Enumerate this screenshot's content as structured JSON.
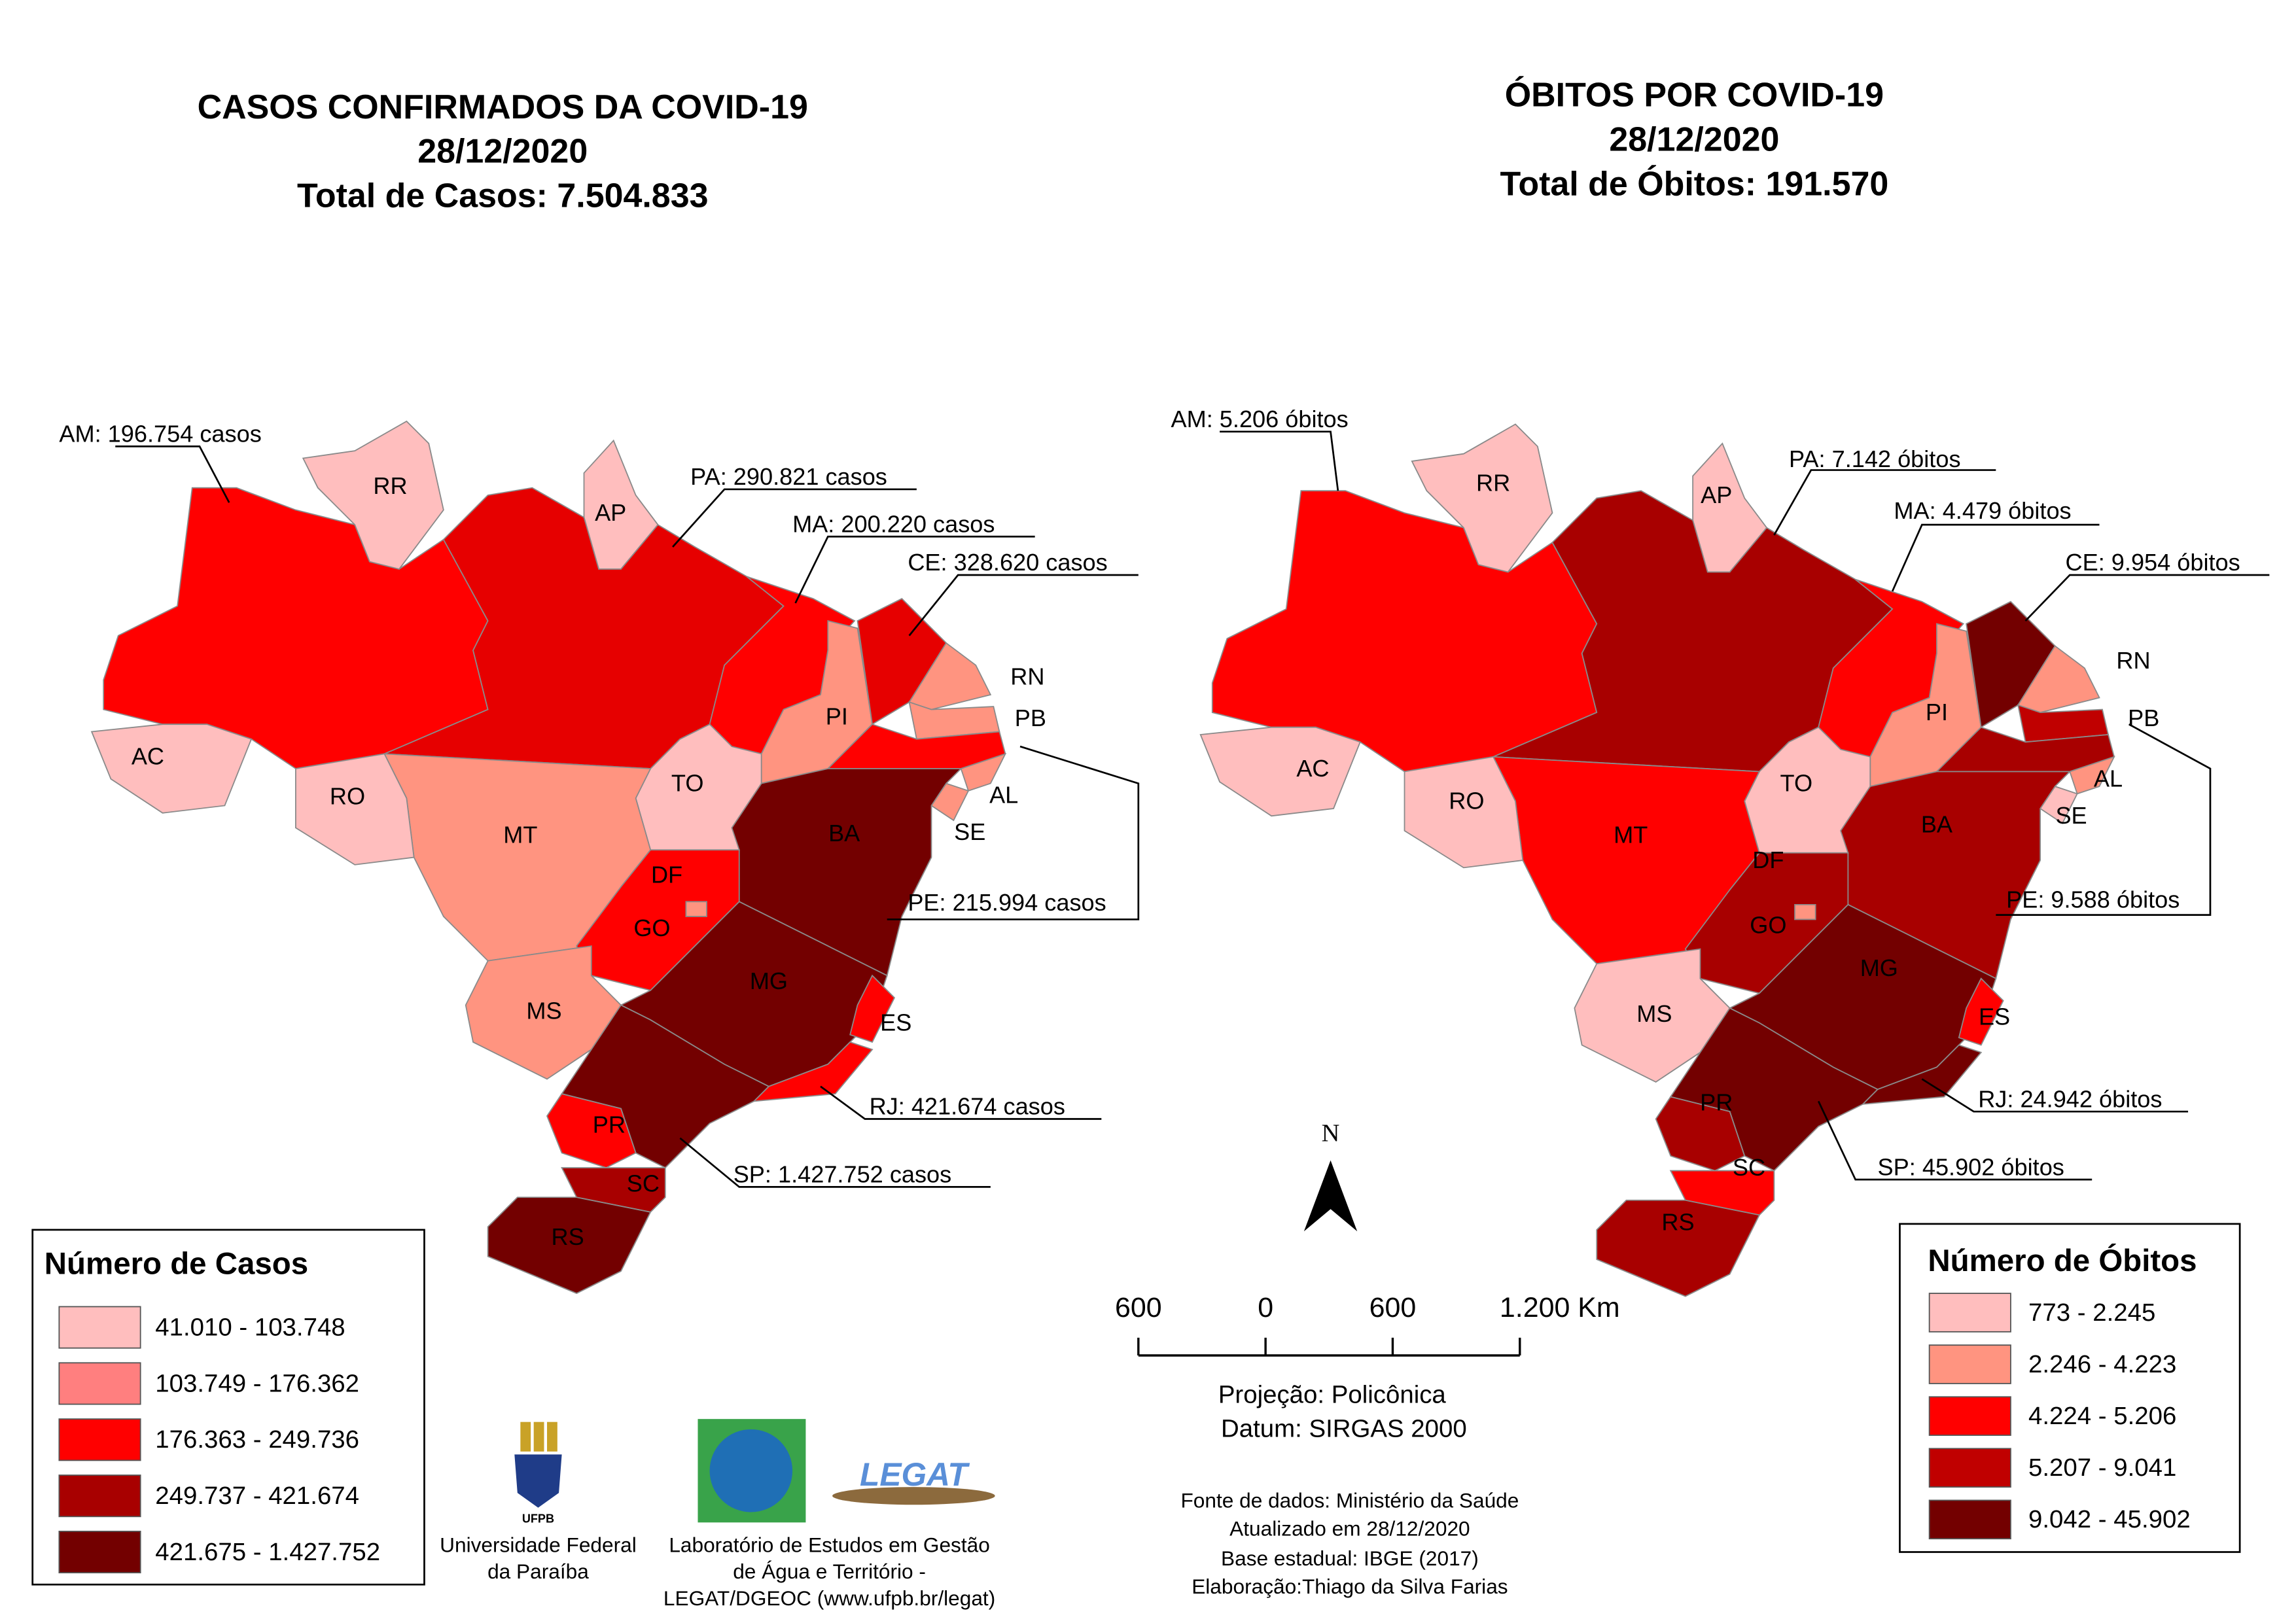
{
  "cases_map": {
    "title": "CASOS CONFIRMADOS DA COVID-19",
    "date": "28/12/2020",
    "total": "Total de Casos: 7.504.833",
    "state_labels": [
      "RR",
      "AP",
      "AC",
      "RO",
      "MT",
      "TO",
      "PI",
      "BA",
      "DF",
      "GO",
      "MG",
      "MS",
      "ES",
      "PR",
      "SC",
      "RS",
      "RN",
      "PB",
      "AL",
      "SE"
    ],
    "callouts": [
      "AM: 196.754 casos",
      "PA: 290.821 casos",
      "MA: 200.220 casos",
      "CE: 328.620 casos",
      "PE: 215.994 casos",
      "RJ: 421.674 casos",
      "SP: 1.427.752 casos"
    ],
    "legend": {
      "title": "Número de Casos",
      "items": [
        {
          "label": "41.010 - 103.748",
          "color": "#ffbebe"
        },
        {
          "label": "103.749 - 176.362",
          "color": "#ff7f7f"
        },
        {
          "label": "176.363 - 249.736",
          "color": "#ff0000"
        },
        {
          "label": "249.737 - 421.674",
          "color": "#a80000"
        },
        {
          "label": "421.675 - 1.427.752",
          "color": "#730000"
        }
      ]
    }
  },
  "deaths_map": {
    "title": "ÓBITOS POR COVID-19",
    "date": "28/12/2020",
    "total": "Total de Óbitos: 191.570",
    "state_labels": [
      "RR",
      "AP",
      "AC",
      "RO",
      "MT",
      "TO",
      "PI",
      "BA",
      "DF",
      "GO",
      "MG",
      "MS",
      "ES",
      "PR",
      "SC",
      "RS",
      "RN",
      "PB",
      "AL",
      "SE"
    ],
    "callouts": [
      "AM: 5.206 óbitos",
      "PA: 7.142 óbitos",
      "MA: 4.479 óbitos",
      "CE: 9.954 óbitos",
      "PE: 9.588 óbitos",
      "RJ: 24.942 óbitos",
      "SP: 45.902 óbitos"
    ],
    "legend": {
      "title": "Número de Óbitos",
      "items": [
        {
          "label": "773 - 2.245",
          "color": "#ffbebe"
        },
        {
          "label": "2.246 - 4.223",
          "color": "#ff9480"
        },
        {
          "label": "4.224 - 5.206",
          "color": "#ff0000"
        },
        {
          "label": "5.207 - 9.041",
          "color": "#c00000"
        },
        {
          "label": "9.042 - 45.902",
          "color": "#730000"
        }
      ]
    }
  },
  "north": "N",
  "scale_bar": [
    "600",
    "0",
    "600",
    "1.200 Km"
  ],
  "projection": [
    "Projeção: Policônica",
    "Datum: SIRGAS 2000"
  ],
  "sources": [
    "Fonte de dados: Ministério da Saúde",
    "Atualizado em 28/12/2020",
    "Base estadual: IBGE (2017)",
    "Elaboração:Thiago da Silva Farias"
  ],
  "institutions": {
    "ufpb_logo": "UFPB",
    "ufpb": [
      "Universidade Federal",
      "da Paraíba"
    ],
    "legat": [
      "Laboratório de Estudos em Gestão",
      "de Água e Território -",
      "LEGAT/DGEOC (www.ufpb.br/legat)"
    ],
    "legat_logo": "LEGAT"
  }
}
